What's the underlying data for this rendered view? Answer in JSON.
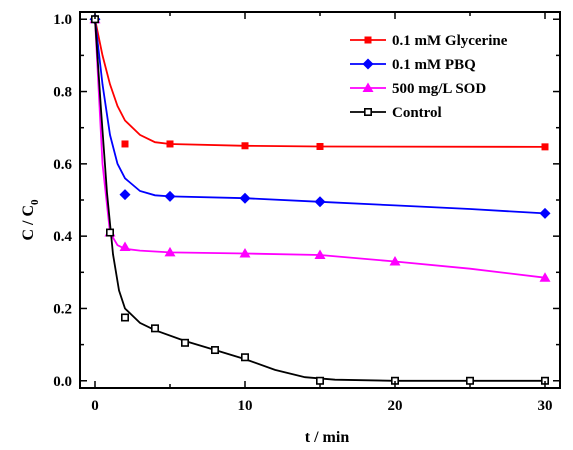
{
  "chart_data": {
    "type": "line",
    "xlabel": "t / min",
    "ylabel": "C / C",
    "ylabel_sub": "0",
    "xlim": [
      -1,
      31
    ],
    "ylim": [
      -0.02,
      1.02
    ],
    "xticks": [
      0,
      10,
      20,
      30
    ],
    "yticks": [
      0.0,
      0.2,
      0.4,
      0.6,
      0.8,
      1.0
    ],
    "ytick_labels": [
      "0.0",
      "0.2",
      "0.4",
      "0.6",
      "0.8",
      "1.0"
    ],
    "legend_position": "top-right",
    "series": [
      {
        "name": "0.1 mM Glycerine",
        "color": "#ff0000",
        "marker": "square",
        "points": [
          [
            0,
            1.0
          ],
          [
            2,
            0.655
          ],
          [
            5,
            0.655
          ],
          [
            10,
            0.65
          ],
          [
            15,
            0.648
          ],
          [
            30,
            0.647
          ]
        ],
        "fit": [
          [
            0,
            1.0
          ],
          [
            0.5,
            0.9
          ],
          [
            1,
            0.82
          ],
          [
            1.5,
            0.76
          ],
          [
            2,
            0.72
          ],
          [
            3,
            0.68
          ],
          [
            4,
            0.66
          ],
          [
            5,
            0.655
          ],
          [
            10,
            0.65
          ],
          [
            15,
            0.648
          ],
          [
            30,
            0.647
          ]
        ]
      },
      {
        "name": "0.1 mM PBQ",
        "color": "#0000ff",
        "marker": "diamond",
        "points": [
          [
            0,
            1.0
          ],
          [
            2,
            0.515
          ],
          [
            5,
            0.51
          ],
          [
            10,
            0.505
          ],
          [
            15,
            0.495
          ],
          [
            30,
            0.463
          ]
        ],
        "fit": [
          [
            0,
            1.0
          ],
          [
            0.5,
            0.82
          ],
          [
            1,
            0.68
          ],
          [
            1.5,
            0.6
          ],
          [
            2,
            0.56
          ],
          [
            3,
            0.525
          ],
          [
            4,
            0.513
          ],
          [
            5,
            0.51
          ],
          [
            10,
            0.505
          ],
          [
            15,
            0.495
          ],
          [
            20,
            0.485
          ],
          [
            25,
            0.475
          ],
          [
            30,
            0.463
          ]
        ]
      },
      {
        "name": "500 mg/L SOD",
        "color": "#ff00ff",
        "marker": "triangle",
        "points": [
          [
            0,
            1.0
          ],
          [
            1,
            0.41
          ],
          [
            2,
            0.37
          ],
          [
            5,
            0.355
          ],
          [
            10,
            0.352
          ],
          [
            15,
            0.348
          ],
          [
            20,
            0.33
          ],
          [
            30,
            0.285
          ]
        ],
        "fit": [
          [
            0,
            1.0
          ],
          [
            0.5,
            0.6
          ],
          [
            1,
            0.41
          ],
          [
            1.5,
            0.375
          ],
          [
            2,
            0.365
          ],
          [
            3,
            0.36
          ],
          [
            5,
            0.355
          ],
          [
            10,
            0.352
          ],
          [
            15,
            0.348
          ],
          [
            20,
            0.33
          ],
          [
            25,
            0.31
          ],
          [
            30,
            0.285
          ]
        ]
      },
      {
        "name": "Control",
        "color": "#000000",
        "marker": "open-square",
        "points": [
          [
            0,
            1.0
          ],
          [
            1,
            0.41
          ],
          [
            2,
            0.175
          ],
          [
            4,
            0.145
          ],
          [
            6,
            0.105
          ],
          [
            8,
            0.085
          ],
          [
            10,
            0.065
          ],
          [
            15,
            0.0
          ],
          [
            20,
            0.0
          ],
          [
            25,
            0.0
          ],
          [
            30,
            0.0
          ]
        ],
        "fit": [
          [
            0,
            1.0
          ],
          [
            0.4,
            0.75
          ],
          [
            0.8,
            0.52
          ],
          [
            1.2,
            0.35
          ],
          [
            1.6,
            0.25
          ],
          [
            2,
            0.2
          ],
          [
            3,
            0.16
          ],
          [
            4,
            0.14
          ],
          [
            6,
            0.11
          ],
          [
            8,
            0.085
          ],
          [
            10,
            0.06
          ],
          [
            12,
            0.03
          ],
          [
            14,
            0.01
          ],
          [
            16,
            0.003
          ],
          [
            20,
            0.0
          ],
          [
            30,
            0.0
          ]
        ]
      }
    ]
  }
}
